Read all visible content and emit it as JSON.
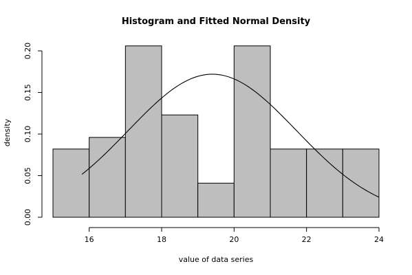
{
  "chart_data": {
    "type": "bar",
    "title": "Histogram and Fitted Normal Density",
    "xlabel": "value of data series",
    "ylabel": "density",
    "bin_edges": [
      15,
      16,
      17,
      18,
      19,
      20,
      21,
      22,
      23,
      24
    ],
    "values": [
      0.082,
      0.096,
      0.206,
      0.123,
      0.041,
      0.206,
      0.082,
      0.082,
      0.082
    ],
    "xlim": [
      15,
      24
    ],
    "ylim": [
      0,
      0.21
    ],
    "x_ticks": [
      "16",
      "18",
      "20",
      "22",
      "24"
    ],
    "x_tick_values": [
      16,
      18,
      20,
      22,
      24
    ],
    "y_ticks": [
      "0.00",
      "0.05",
      "0.10",
      "0.15",
      "0.20"
    ],
    "y_tick_values": [
      0,
      0.05,
      0.1,
      0.15,
      0.2
    ],
    "fitted_normal": {
      "mean": 19.4,
      "sd": 2.32,
      "x_range": [
        15.8,
        24
      ]
    },
    "grid": false,
    "colors": {
      "bar_fill": "#bebebe",
      "bar_stroke": "#000000",
      "curve": "#000000"
    }
  }
}
